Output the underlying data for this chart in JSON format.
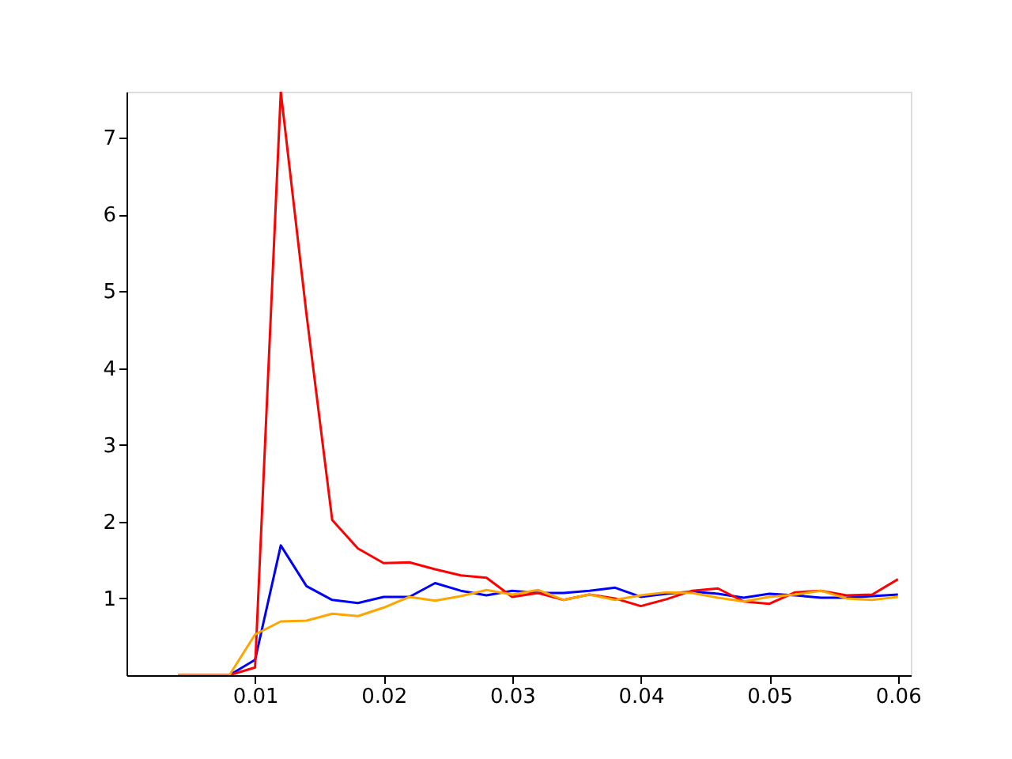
{
  "chart_data": {
    "type": "line",
    "x": [
      0.004,
      0.006,
      0.008,
      0.01,
      0.012,
      0.014,
      0.016,
      0.018,
      0.02,
      0.022,
      0.024,
      0.026,
      0.028,
      0.03,
      0.032,
      0.034,
      0.036,
      0.038,
      0.04,
      0.042,
      0.044,
      0.046,
      0.048,
      0.05,
      0.052,
      0.054,
      0.056,
      0.058,
      0.06
    ],
    "series": [
      {
        "color": "#0000ff",
        "values": [
          0,
          0,
          0,
          0.2,
          1.69,
          1.16,
          0.98,
          0.94,
          1.02,
          1.02,
          1.2,
          1.1,
          1.04,
          1.1,
          1.07,
          1.07,
          1.1,
          1.14,
          1.02,
          1.06,
          1.09,
          1.06,
          1.01,
          1.06,
          1.04,
          1.01,
          1.01,
          1.03,
          1.05
        ]
      },
      {
        "color": "#ff0000",
        "values": [
          0,
          0,
          0,
          0.1,
          7.6,
          4.7,
          2.02,
          1.65,
          1.46,
          1.47,
          1.38,
          1.3,
          1.27,
          1.02,
          1.07,
          0.98,
          1.05,
          1.0,
          0.9,
          0.99,
          1.1,
          1.13,
          0.96,
          0.93,
          1.08,
          1.1,
          1.04,
          1.05,
          1.25
        ]
      },
      {
        "color": "#ffa500",
        "values": [
          0,
          0,
          0,
          0.53,
          0.7,
          0.71,
          0.8,
          0.77,
          0.88,
          1.02,
          0.97,
          1.03,
          1.11,
          1.05,
          1.11,
          0.98,
          1.05,
          0.98,
          1.04,
          1.08,
          1.07,
          1.01,
          0.96,
          1.02,
          1.05,
          1.1,
          1.0,
          0.98,
          1.02
        ]
      }
    ],
    "xlim": [
      0.0,
      0.061
    ],
    "ylim": [
      0.0,
      7.6
    ],
    "xticks": [
      0.01,
      0.02,
      0.03,
      0.04,
      0.05,
      0.06
    ],
    "yticks": [
      1,
      2,
      3,
      4,
      5,
      6,
      7
    ],
    "grid": false,
    "legend": false,
    "marker": "none",
    "line_style": "solid"
  }
}
